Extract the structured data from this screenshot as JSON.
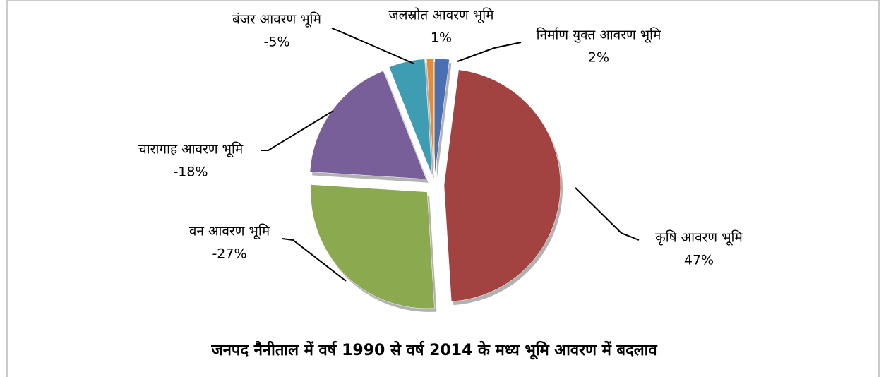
{
  "chart_data": {
    "type": "pie",
    "title": "जनपद नैनीताल में वर्ष 1990 से वर्ष 2014 के मध्य भूमि आवरण में बदलाव",
    "categories": [
      "निर्माण युक्त आवरण भूमि",
      "कृषि आवरण भूमि",
      "वन आवरण भूमि",
      "चारागाह आवरण भूमि",
      "बंजर आवरण भूमि",
      "जलस्रोत आवरण भूमि"
    ],
    "values": [
      2,
      47,
      -27,
      -18,
      -5,
      1
    ],
    "value_labels": [
      "2%",
      "47%",
      "-27%",
      "-18%",
      "-5%",
      "1%"
    ],
    "colors": [
      "#4a70b3",
      "#a34341",
      "#8ba94f",
      "#785f9a",
      "#3f9db3",
      "#e38b3a"
    ]
  }
}
